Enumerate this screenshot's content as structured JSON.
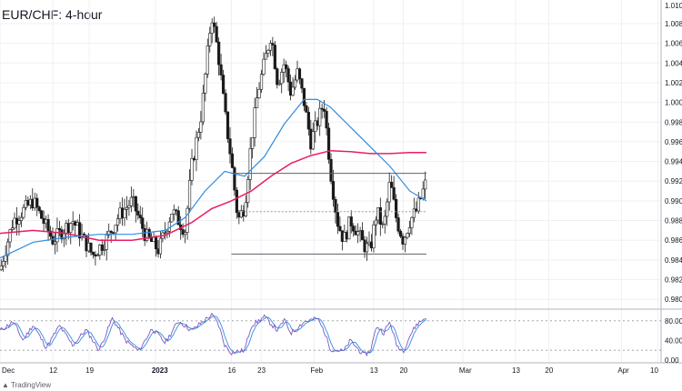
{
  "title": "EUR/CHF: 4-hour",
  "attribution": "TradingView",
  "colors": {
    "candle": "#1a1a1a",
    "ma_fast": "#2f8de4",
    "ma_slow": "#e91e63",
    "level_line": "#5d606b",
    "grid": "#eef0f3",
    "rsi": "#7e57c2",
    "rsi_signal": "#2f8de4"
  },
  "chart_data": [
    {
      "type": "line",
      "title": "EUR/CHF: 4-hour",
      "ylim": [
        0.979,
        1.0104
      ],
      "y_ticks": [
        "1.00800",
        "1.00600",
        "1.00400",
        "1.00200",
        "1.00000",
        "0.99800",
        "0.99600",
        "0.99400",
        "0.99200",
        "0.99000",
        "0.98800",
        "0.98600",
        "0.98400",
        "0.98200",
        "0.98000"
      ],
      "y_tick_values": [
        1.008,
        1.006,
        1.004,
        1.002,
        1.0,
        0.998,
        0.996,
        0.994,
        0.992,
        0.99,
        0.988,
        0.986,
        0.984,
        0.982,
        0.98
      ],
      "top_partial_tick": "1.0100",
      "x_ticks": [
        "Dec",
        "12",
        "19",
        "2023",
        "16",
        "23",
        "Feb",
        "13",
        "20",
        "Mar",
        "13",
        "20",
        "Apr",
        "10"
      ],
      "x_tick_positions": [
        0,
        0.08,
        0.135,
        0.235,
        0.35,
        0.395,
        0.475,
        0.565,
        0.61,
        0.7,
        0.78,
        0.83,
        0.94,
        0.995
      ],
      "price_key_points": [
        [
          0.0,
          0.983
        ],
        [
          0.02,
          0.988
        ],
        [
          0.05,
          0.99
        ],
        [
          0.08,
          0.986
        ],
        [
          0.11,
          0.988
        ],
        [
          0.14,
          0.9845
        ],
        [
          0.16,
          0.986
        ],
        [
          0.18,
          0.9885
        ],
        [
          0.2,
          0.99
        ],
        [
          0.22,
          0.9865
        ],
        [
          0.24,
          0.985
        ],
        [
          0.26,
          0.989
        ],
        [
          0.28,
          0.987
        ],
        [
          0.29,
          0.9935
        ],
        [
          0.305,
          0.999
        ],
        [
          0.32,
          1.009
        ],
        [
          0.33,
          1.005
        ],
        [
          0.34,
          0.999
        ],
        [
          0.35,
          0.994
        ],
        [
          0.36,
          0.988
        ],
        [
          0.37,
          0.9895
        ],
        [
          0.38,
          0.996
        ],
        [
          0.39,
          1.001
        ],
        [
          0.4,
          1.004
        ],
        [
          0.41,
          1.007
        ],
        [
          0.42,
          1.002
        ],
        [
          0.43,
          1.004
        ],
        [
          0.44,
          1.001
        ],
        [
          0.45,
          1.003
        ],
        [
          0.46,
          1.0
        ],
        [
          0.47,
          0.996
        ],
        [
          0.48,
          0.998
        ],
        [
          0.49,
          1.0
        ],
        [
          0.5,
          0.993
        ],
        [
          0.51,
          0.988
        ],
        [
          0.52,
          0.986
        ],
        [
          0.53,
          0.988
        ],
        [
          0.54,
          0.987
        ],
        [
          0.55,
          0.9855
        ],
        [
          0.56,
          0.985
        ],
        [
          0.57,
          0.989
        ],
        [
          0.58,
          0.987
        ],
        [
          0.59,
          0.992
        ],
        [
          0.6,
          0.988
        ],
        [
          0.61,
          0.986
        ],
        [
          0.62,
          0.988
        ],
        [
          0.63,
          0.989
        ],
        [
          0.645,
          0.992
        ]
      ],
      "ma_fast_points": [
        [
          0.0,
          0.9842
        ],
        [
          0.05,
          0.9858
        ],
        [
          0.1,
          0.9863
        ],
        [
          0.15,
          0.9866
        ],
        [
          0.2,
          0.9866
        ],
        [
          0.25,
          0.987
        ],
        [
          0.28,
          0.9883
        ],
        [
          0.31,
          0.991
        ],
        [
          0.34,
          0.993
        ],
        [
          0.37,
          0.9925
        ],
        [
          0.4,
          0.9945
        ],
        [
          0.43,
          0.9978
        ],
        [
          0.46,
          1.0003
        ],
        [
          0.48,
          1.0003
        ],
        [
          0.5,
          0.9995
        ],
        [
          0.53,
          0.9975
        ],
        [
          0.56,
          0.9955
        ],
        [
          0.59,
          0.9935
        ],
        [
          0.62,
          0.991
        ],
        [
          0.645,
          0.99
        ]
      ],
      "ma_slow_points": [
        [
          0.0,
          0.9867
        ],
        [
          0.05,
          0.987
        ],
        [
          0.1,
          0.9867
        ],
        [
          0.15,
          0.986
        ],
        [
          0.2,
          0.986
        ],
        [
          0.25,
          0.9865
        ],
        [
          0.29,
          0.9878
        ],
        [
          0.32,
          0.9892
        ],
        [
          0.35,
          0.99
        ],
        [
          0.38,
          0.991
        ],
        [
          0.41,
          0.9925
        ],
        [
          0.44,
          0.9938
        ],
        [
          0.47,
          0.9946
        ],
        [
          0.5,
          0.9951
        ],
        [
          0.53,
          0.995
        ],
        [
          0.56,
          0.9948
        ],
        [
          0.59,
          0.9948
        ],
        [
          0.62,
          0.9949
        ],
        [
          0.645,
          0.9949
        ]
      ],
      "resistance_level": 0.9928,
      "support_level": 0.9846,
      "mid_level": 0.9889,
      "resistance_start": 0.35,
      "support_start": 0.35,
      "mid_start": 0.36,
      "resistance_end": 0.645,
      "support_end": 0.645,
      "mid_end": 0.645
    },
    {
      "type": "line",
      "ylim": [
        0,
        100
      ],
      "y_ticks": [
        "80.00",
        "40.00",
        "0.00"
      ],
      "y_tick_values": [
        80,
        40,
        0
      ],
      "guide_levels": [
        80,
        20
      ],
      "rsi_key_points": [
        [
          0.0,
          60
        ],
        [
          0.02,
          78
        ],
        [
          0.035,
          40
        ],
        [
          0.05,
          72
        ],
        [
          0.07,
          25
        ],
        [
          0.09,
          70
        ],
        [
          0.11,
          30
        ],
        [
          0.13,
          62
        ],
        [
          0.15,
          20
        ],
        [
          0.17,
          85
        ],
        [
          0.19,
          40
        ],
        [
          0.21,
          18
        ],
        [
          0.23,
          65
        ],
        [
          0.25,
          35
        ],
        [
          0.27,
          80
        ],
        [
          0.29,
          60
        ],
        [
          0.31,
          82
        ],
        [
          0.32,
          92
        ],
        [
          0.33,
          75
        ],
        [
          0.34,
          30
        ],
        [
          0.35,
          15
        ],
        [
          0.37,
          20
        ],
        [
          0.38,
          70
        ],
        [
          0.4,
          88
        ],
        [
          0.42,
          60
        ],
        [
          0.43,
          82
        ],
        [
          0.44,
          55
        ],
        [
          0.46,
          78
        ],
        [
          0.48,
          85
        ],
        [
          0.49,
          60
        ],
        [
          0.5,
          22
        ],
        [
          0.52,
          18
        ],
        [
          0.53,
          40
        ],
        [
          0.55,
          10
        ],
        [
          0.56,
          18
        ],
        [
          0.57,
          70
        ],
        [
          0.58,
          55
        ],
        [
          0.59,
          78
        ],
        [
          0.6,
          30
        ],
        [
          0.61,
          18
        ],
        [
          0.62,
          50
        ],
        [
          0.63,
          72
        ],
        [
          0.645,
          88
        ]
      ]
    }
  ]
}
